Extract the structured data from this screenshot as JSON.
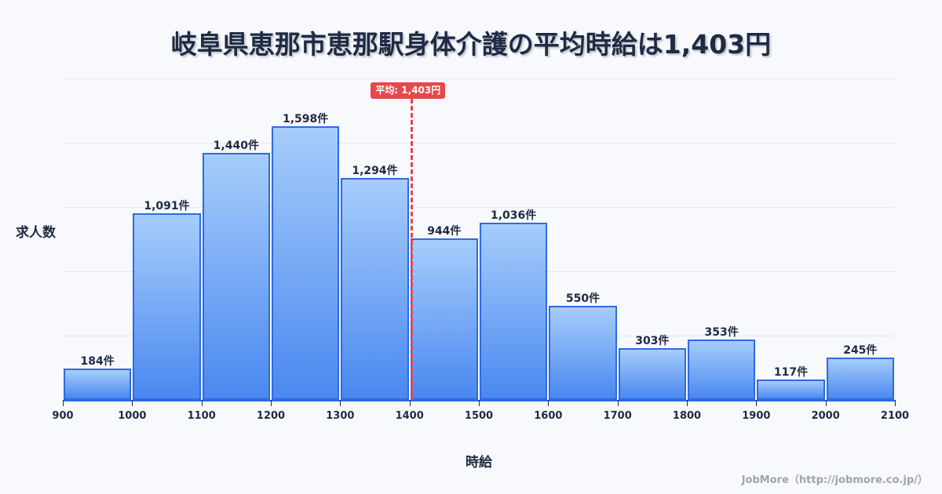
{
  "title": "岐阜県恵那市恵那駅身体介護の平均時給は1,403円",
  "ylabel": "求人数",
  "xlabel": "時給",
  "credit": "JobMore（http://jobmore.co.jp/）",
  "mean_badge": "平均: 1,403円",
  "colors": {
    "bar_border": "#2f6ae0",
    "bar_top": "#a6cdfb",
    "bar_bottom": "#4a88f0",
    "mean": "#e8474b",
    "text": "#1f2a44"
  },
  "chart_data": {
    "type": "bar",
    "title": "岐阜県恵那市恵那駅身体介護の平均時給は1,403円",
    "xlabel": "時給",
    "ylabel": "求人数",
    "categories": [
      "900-1000",
      "1000-1100",
      "1100-1200",
      "1200-1300",
      "1300-1400",
      "1400-1500",
      "1500-1600",
      "1600-1700",
      "1700-1800",
      "1800-1900",
      "1900-2000",
      "2000-2100"
    ],
    "bin_edges": [
      900,
      1000,
      1100,
      1200,
      1300,
      1400,
      1500,
      1600,
      1700,
      1800,
      1900,
      2000,
      2100
    ],
    "values": [
      184,
      1091,
      1440,
      1598,
      1294,
      944,
      1036,
      550,
      303,
      353,
      117,
      245
    ],
    "value_labels": [
      "184件",
      "1,091件",
      "1,440件",
      "1,598件",
      "1,294件",
      "944件",
      "1,036件",
      "550件",
      "303件",
      "353件",
      "117件",
      "245件"
    ],
    "x_ticks": [
      "900",
      "1000",
      "1100",
      "1200",
      "1300",
      "1400",
      "1500",
      "1600",
      "1700",
      "1800",
      "1900",
      "2000",
      "2100"
    ],
    "mean": 1403,
    "mean_label": "平均: 1,403円",
    "grid": true,
    "xlim": [
      900,
      2100
    ]
  }
}
